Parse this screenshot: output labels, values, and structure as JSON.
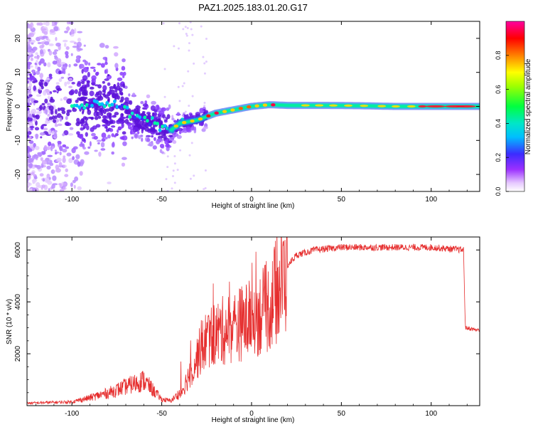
{
  "title": "PAZ1.2025.183.01.20.G17",
  "chart_data": [
    {
      "type": "heatmap",
      "xlabel": "Height of straight line (km)",
      "ylabel": "Frequency (Hz)",
      "xlim": [
        -125,
        127
      ],
      "ylim": [
        -25,
        25
      ],
      "xticks": [
        -100,
        -50,
        0,
        50,
        100
      ],
      "yticks": [
        -20,
        -10,
        0,
        10,
        20
      ],
      "colorbar": {
        "label": "Normalized spectral amplitude",
        "range": [
          0,
          1
        ],
        "ticks": [
          "0.0",
          "0.2",
          "0.4",
          "0.6",
          "0.8"
        ]
      },
      "ridge": [
        {
          "x": -95,
          "y": 0
        },
        {
          "x": -85,
          "y": 1
        },
        {
          "x": -75,
          "y": 1
        },
        {
          "x": -65,
          "y": -3
        },
        {
          "x": -55,
          "y": -5
        },
        {
          "x": -45,
          "y": -7
        },
        {
          "x": -40,
          "y": -5
        },
        {
          "x": -30,
          "y": -4
        },
        {
          "x": -20,
          "y": -2
        },
        {
          "x": -10,
          "y": -1
        },
        {
          "x": 0,
          "y": 0
        },
        {
          "x": 10,
          "y": 0.5
        },
        {
          "x": 20,
          "y": 0.3
        },
        {
          "x": 40,
          "y": 0.3
        },
        {
          "x": 60,
          "y": 0.2
        },
        {
          "x": 80,
          "y": 0
        },
        {
          "x": 100,
          "y": 0
        },
        {
          "x": 127,
          "y": 0
        }
      ]
    },
    {
      "type": "line",
      "xlabel": "Height of straight line (km)",
      "ylabel": "SNR (10 * v/v)",
      "xlim": [
        -125,
        127
      ],
      "ylim": [
        0,
        6500
      ],
      "xticks": [
        -100,
        -50,
        0,
        50,
        100
      ],
      "yticks": [
        2000,
        4000,
        6000
      ],
      "series": [
        {
          "color": "#e62e2e",
          "envelope": [
            {
              "x": -125,
              "y": 80
            },
            {
              "x": -100,
              "y": 120
            },
            {
              "x": -90,
              "y": 250
            },
            {
              "x": -80,
              "y": 400
            },
            {
              "x": -70,
              "y": 600
            },
            {
              "x": -60,
              "y": 800
            },
            {
              "x": -55,
              "y": 500
            },
            {
              "x": -50,
              "y": 200
            },
            {
              "x": -45,
              "y": 150
            },
            {
              "x": -40,
              "y": 400
            },
            {
              "x": -35,
              "y": 1200
            },
            {
              "x": -30,
              "y": 2000
            },
            {
              "x": -25,
              "y": 2700
            },
            {
              "x": -20,
              "y": 2900
            },
            {
              "x": -10,
              "y": 3200
            },
            {
              "x": 0,
              "y": 3500
            },
            {
              "x": 10,
              "y": 4000
            },
            {
              "x": 15,
              "y": 4700
            },
            {
              "x": 20,
              "y": 5400
            },
            {
              "x": 25,
              "y": 5800
            },
            {
              "x": 35,
              "y": 6000
            },
            {
              "x": 50,
              "y": 6100
            },
            {
              "x": 80,
              "y": 6100
            },
            {
              "x": 100,
              "y": 6100
            },
            {
              "x": 118,
              "y": 6000
            },
            {
              "x": 119,
              "y": 3000
            },
            {
              "x": 127,
              "y": 2900
            }
          ]
        }
      ]
    }
  ]
}
